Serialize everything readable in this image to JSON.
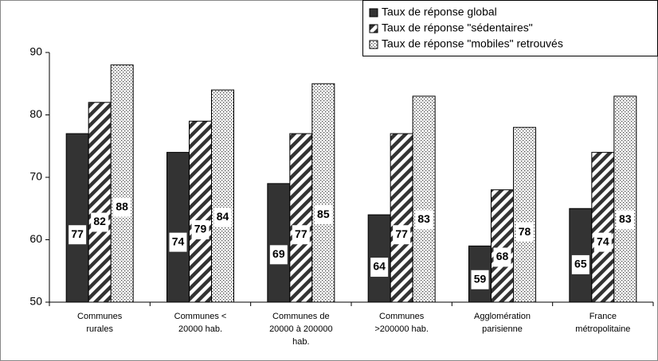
{
  "chart_data": {
    "type": "bar",
    "categories": [
      [
        "Communes",
        "rurales"
      ],
      [
        "Communes  <",
        "20000 hab."
      ],
      [
        "Communes de",
        "20000 à 200000",
        "hab."
      ],
      [
        "Communes",
        ">200000 hab."
      ],
      [
        "Agglomération",
        "parisienne"
      ],
      [
        "France",
        "métropolitaine"
      ]
    ],
    "series": [
      {
        "name": "Taux de réponse global",
        "color": "#333333",
        "pattern": "solid",
        "values": [
          77,
          74,
          69,
          64,
          59,
          65
        ]
      },
      {
        "name": "Taux de réponse \"sédentaires\"",
        "color": "#333333",
        "pattern": "diagonal",
        "values": [
          82,
          79,
          77,
          77,
          68,
          74
        ]
      },
      {
        "name": "Taux de réponse \"mobiles\" retrouvés",
        "color": "#333333",
        "pattern": "dots",
        "values": [
          88,
          84,
          85,
          83,
          78,
          83
        ]
      }
    ],
    "ylim": [
      50,
      90
    ],
    "yticks": [
      50,
      60,
      70,
      80,
      90
    ],
    "grid": false,
    "legend": "top-right"
  }
}
